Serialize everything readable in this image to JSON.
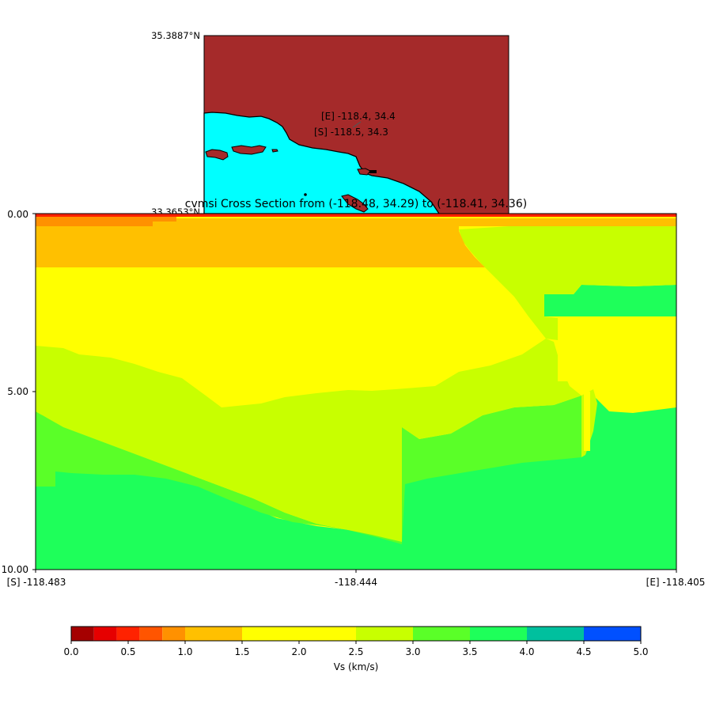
{
  "chart_data": [
    {
      "type": "map",
      "corner_labels": {
        "top": "35.3887°N",
        "bottom": "33.3653°N"
      },
      "markers": [
        {
          "label": "[E] -118.4, 34.4",
          "lon": -118.405,
          "lat": 34.36
        },
        {
          "label": "[S] -118.5, 34.3",
          "lon": -118.483,
          "lat": 34.29
        }
      ],
      "colors": {
        "land": "#a52a2a",
        "water": "#00ffff",
        "outline": "#000000"
      }
    },
    {
      "type": "heatmap",
      "title": "cvmsi Cross Section from (-118.48, 34.29) to (-118.41, 34.36)",
      "x_tick_labels": [
        "[S] -118.483",
        "-118.444",
        "[E] -118.405"
      ],
      "x_ticks": [
        -118.483,
        -118.444,
        -118.405
      ],
      "xlim": [
        -118.483,
        -118.405
      ],
      "y_tick_labels": [
        "0.00",
        "5.00",
        "10.00"
      ],
      "y_ticks": [
        0,
        5,
        10
      ],
      "ylim": [
        0,
        10
      ],
      "y_inverted": true,
      "colorbar": {
        "label": "Vs (km/s)",
        "tick_labels": [
          "0.0",
          "0.5",
          "1.0",
          "1.5",
          "2.0",
          "2.5",
          "3.0",
          "3.5",
          "4.0",
          "4.5",
          "5.0"
        ],
        "boundaries": [
          0,
          0.2,
          0.4,
          0.6,
          0.8,
          1.0,
          1.5,
          2.5,
          3.0,
          3.5,
          4.0,
          4.5,
          5.0
        ],
        "colors": [
          "#a50000",
          "#e60000",
          "#ff2200",
          "#ff5500",
          "#ff9100",
          "#ffc000",
          "#ffff00",
          "#c8ff00",
          "#5aff28",
          "#1eff5a",
          "#00c09e",
          "#0050ff"
        ]
      },
      "color_by_vs": {
        "0.4-0.6": "#ff2200",
        "0.8-1.0": "#ff9100",
        "1.0-1.5": "#ffc000",
        "1.5-2.5": "#ffff00",
        "2.5-3.0": "#c8ff00",
        "3.0-3.5": "#5aff28",
        "3.5-4.0": "#1eff5a"
      },
      "velocity_zones_km_s": [
        {
          "vs_range": "0.4-0.6",
          "depth_km": [
            0,
            0.08
          ]
        },
        {
          "vs_range": "0.8-1.0",
          "depth_km": [
            0.08,
            0.35
          ]
        },
        {
          "vs_range": "1.0-1.5",
          "depth_km": [
            0.35,
            1.55
          ]
        },
        {
          "vs_range": "1.5-2.5",
          "depth_km": [
            1.55,
            5.5
          ]
        },
        {
          "vs_range": "2.5-3.0",
          "depth_km": [
            3.7,
            9.2
          ]
        },
        {
          "vs_range": "3.0-3.5",
          "depth_km": [
            5.5,
            8.5
          ]
        },
        {
          "vs_range": "3.5-4.0",
          "depth_km": [
            7.5,
            10.0
          ]
        }
      ]
    }
  ]
}
